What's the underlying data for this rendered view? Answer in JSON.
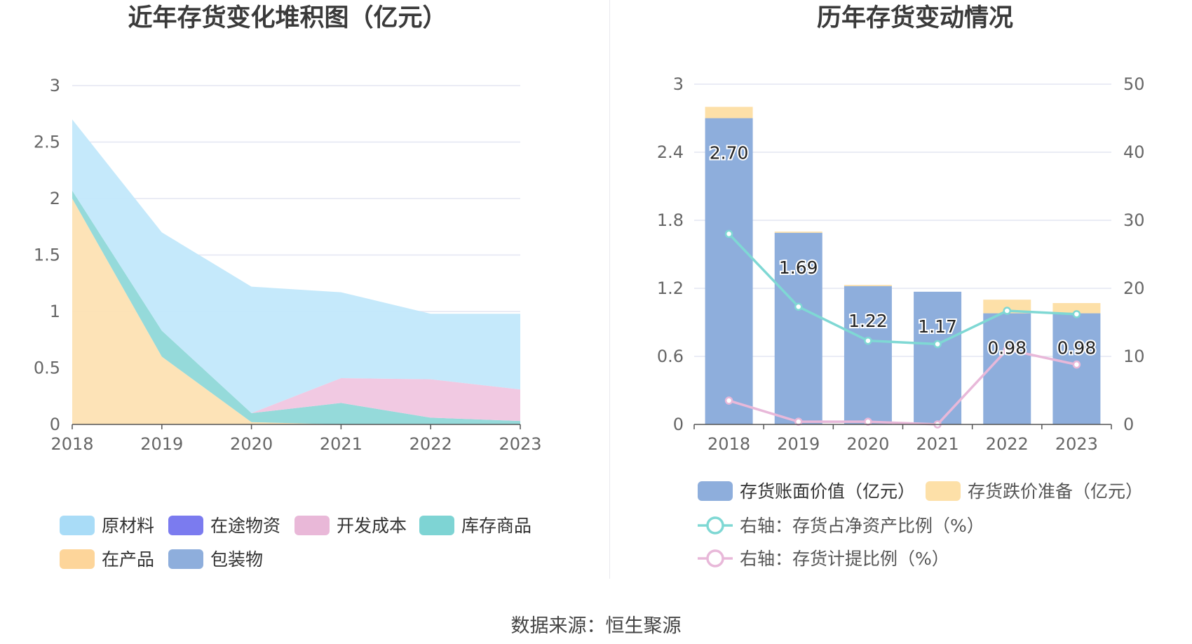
{
  "source": "数据来源：恒生聚源",
  "chart_data": [
    {
      "type": "area",
      "title": "近年存货变化堆积图（亿元）",
      "categories": [
        "2018",
        "2019",
        "2020",
        "2021",
        "2022",
        "2023"
      ],
      "y_ticks": [
        "0",
        "0.5",
        "1",
        "1.5",
        "2",
        "2.5",
        "3"
      ],
      "ylim": [
        0,
        3
      ],
      "grid": true,
      "legend_position": "bottom",
      "stacking": "stacked",
      "series": [
        {
          "name": "在产品",
          "color": "#fde2b3",
          "values": [
            2.0,
            0.6,
            0.02,
            0.0,
            0.0,
            0.0
          ]
        },
        {
          "name": "包装物",
          "color": "#8eaedc",
          "values": [
            0.0,
            0.0,
            0.0,
            0.0,
            0.0,
            0.0
          ]
        },
        {
          "name": "库存商品",
          "color": "#8fd8d8",
          "values": [
            0.07,
            0.23,
            0.08,
            0.19,
            0.06,
            0.03
          ]
        },
        {
          "name": "在途物资",
          "color": "#7b7bef",
          "values": [
            0.0,
            0.0,
            0.0,
            0.0,
            0.0,
            0.0
          ]
        },
        {
          "name": "开发成本",
          "color": "#f0c6e0",
          "values": [
            0.0,
            0.0,
            0.0,
            0.22,
            0.34,
            0.28
          ]
        },
        {
          "name": "原材料",
          "color": "#c2e8fb",
          "values": [
            0.63,
            0.87,
            1.12,
            0.76,
            0.58,
            0.67
          ]
        }
      ],
      "legend_order": [
        "原材料",
        "在途物资",
        "开发成本",
        "库存商品",
        "在产品",
        "包装物"
      ],
      "legend_colors": [
        "#a9dcf7",
        "#7b7bef",
        "#e9b8d8",
        "#7ed4d4",
        "#fdd59a",
        "#8eaedc"
      ]
    },
    {
      "type": "bar",
      "title": "历年存货变动情况",
      "categories": [
        "2018",
        "2019",
        "2020",
        "2021",
        "2022",
        "2023"
      ],
      "y_ticks": [
        "0",
        "0.6",
        "1.2",
        "1.8",
        "2.4",
        "3"
      ],
      "ylim": [
        0,
        3
      ],
      "y2_ticks": [
        "0",
        "10",
        "20",
        "30",
        "40",
        "50"
      ],
      "y2lim": [
        0,
        50
      ],
      "grid": true,
      "legend_position": "bottom",
      "series": [
        {
          "name": "存货账面价值（亿元）",
          "kind": "bar",
          "color": "#8eaedc",
          "values": [
            2.7,
            1.69,
            1.22,
            1.17,
            0.98,
            0.98
          ],
          "labels": [
            "2.70",
            "1.69",
            "1.22",
            "1.17",
            "0.98",
            "0.98"
          ]
        },
        {
          "name": "存货跌价准备（亿元）",
          "kind": "bar",
          "color": "#fde0a8",
          "values": [
            0.1,
            0.01,
            0.01,
            0.0,
            0.12,
            0.09
          ]
        },
        {
          "name": "右轴：存货占净资产比例（%）",
          "kind": "line",
          "axis": "right",
          "color": "#7fd8d4",
          "values": [
            28.0,
            17.3,
            12.3,
            11.8,
            16.7,
            16.2
          ]
        },
        {
          "name": "右轴：存货计提比例（%）",
          "kind": "line",
          "axis": "right",
          "color": "#e8b8d9",
          "values": [
            3.5,
            0.4,
            0.4,
            0.0,
            11.0,
            8.8
          ]
        }
      ]
    }
  ]
}
